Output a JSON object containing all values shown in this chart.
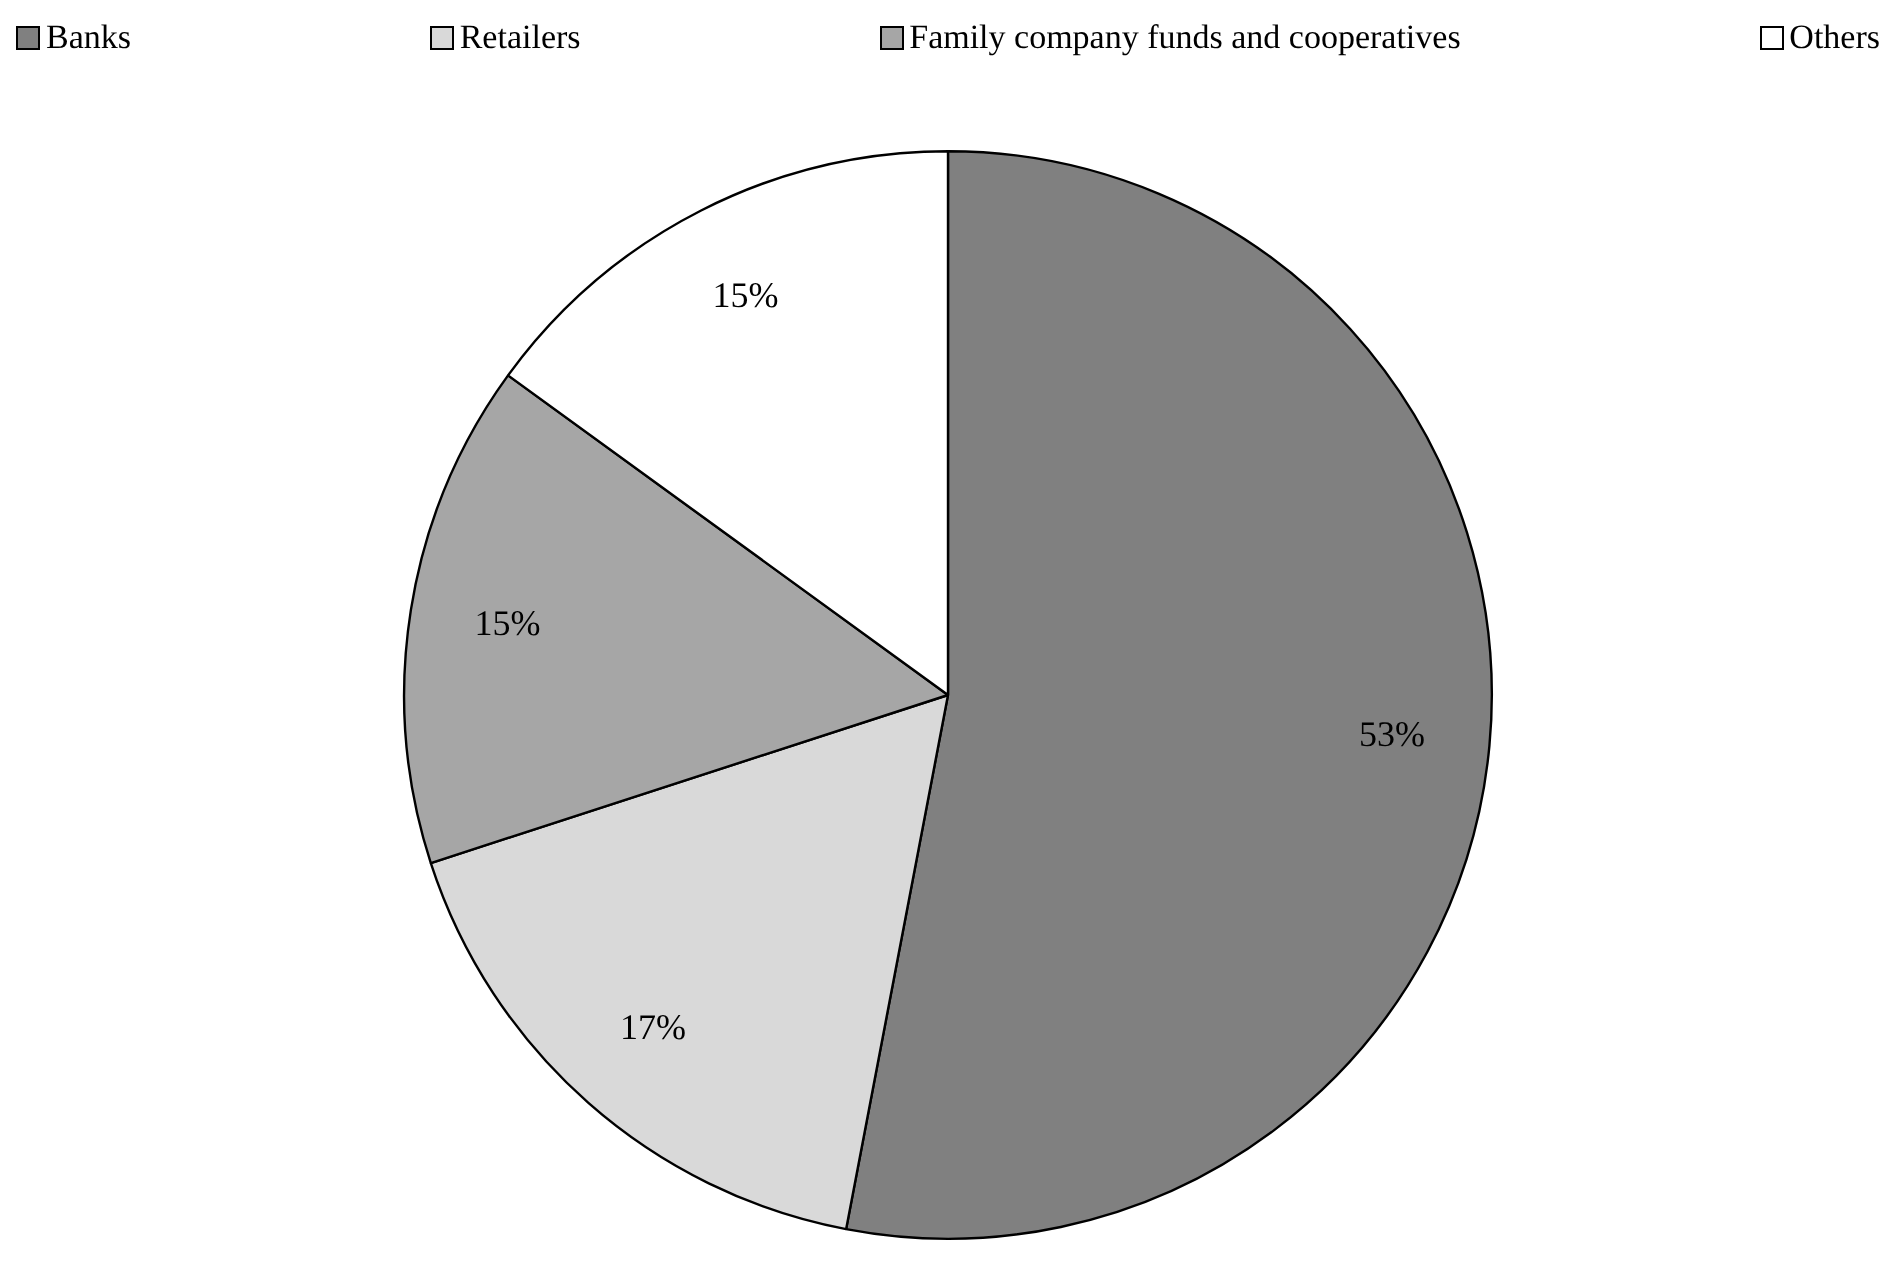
{
  "chart_data": {
    "type": "pie",
    "categories": [
      "Banks",
      "Retailers",
      "Family company funds and cooperatives",
      "Others"
    ],
    "values": [
      53,
      17,
      15,
      15
    ],
    "value_labels": [
      "53%",
      "17%",
      "15%",
      "15%"
    ],
    "colors": [
      "#808080",
      "#d9d9d9",
      "#a6a6a6",
      "#ffffff"
    ],
    "legend": "top"
  }
}
